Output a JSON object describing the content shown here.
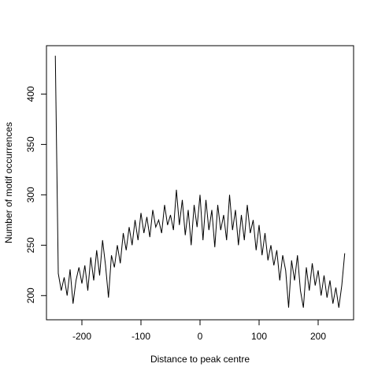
{
  "chart_data": {
    "type": "line",
    "xlabel": "Distance to peak centre",
    "ylabel": "Number of motif occurrences",
    "x": [
      -245,
      -240,
      -235,
      -230,
      -225,
      -220,
      -215,
      -210,
      -205,
      -200,
      -195,
      -190,
      -185,
      -180,
      -175,
      -170,
      -165,
      -160,
      -155,
      -150,
      -145,
      -140,
      -135,
      -130,
      -125,
      -120,
      -115,
      -110,
      -105,
      -100,
      -95,
      -90,
      -85,
      -80,
      -75,
      -70,
      -65,
      -60,
      -55,
      -50,
      -45,
      -40,
      -35,
      -30,
      -25,
      -20,
      -15,
      -10,
      -5,
      0,
      5,
      10,
      15,
      20,
      25,
      30,
      35,
      40,
      45,
      50,
      55,
      60,
      65,
      70,
      75,
      80,
      85,
      90,
      95,
      100,
      105,
      110,
      115,
      120,
      125,
      130,
      135,
      140,
      145,
      150,
      155,
      160,
      165,
      170,
      175,
      180,
      185,
      190,
      195,
      200,
      205,
      210,
      215,
      220,
      225,
      230,
      235,
      240,
      245
    ],
    "series": [
      {
        "color": "#000000",
        "values": [
          438,
          222,
          205,
          218,
          200,
          226,
          192,
          215,
          228,
          212,
          230,
          205,
          238,
          215,
          245,
          220,
          255,
          230,
          198,
          240,
          228,
          250,
          232,
          262,
          245,
          268,
          250,
          275,
          255,
          282,
          262,
          278,
          258,
          285,
          268,
          275,
          262,
          290,
          270,
          280,
          265,
          305,
          270,
          295,
          260,
          285,
          250,
          290,
          268,
          300,
          255,
          295,
          265,
          285,
          248,
          290,
          265,
          280,
          255,
          300,
          265,
          285,
          250,
          280,
          255,
          290,
          262,
          275,
          245,
          270,
          240,
          262,
          235,
          250,
          230,
          245,
          215,
          240,
          225,
          188,
          235,
          215,
          240,
          205,
          188,
          228,
          205,
          232,
          210,
          225,
          200,
          220,
          198,
          215,
          192,
          208,
          188,
          210,
          242
        ]
      }
    ],
    "xlim": [
      -260,
      260
    ],
    "ylim": [
      176,
      448
    ],
    "xticks": [
      -200,
      -100,
      0,
      100,
      200
    ],
    "yticks": [
      200,
      250,
      300,
      350,
      400
    ]
  }
}
